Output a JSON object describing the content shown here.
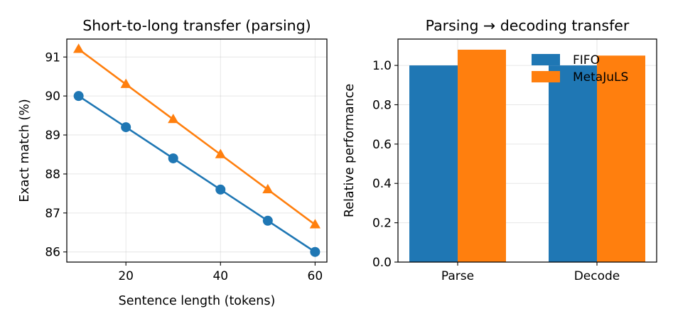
{
  "colors": {
    "fifo": "#1f77b4",
    "metajuls": "#ff7f0e"
  },
  "chart_data": [
    {
      "type": "line",
      "title": "Short-to-long transfer (parsing)",
      "xlabel": "Sentence length (tokens)",
      "ylabel": "Exact match (%)",
      "x": [
        10,
        20,
        30,
        40,
        50,
        60
      ],
      "xlim": [
        7.5,
        62.5
      ],
      "ylim": [
        85.74,
        91.46
      ],
      "xticks": [
        20,
        40,
        60
      ],
      "yticks": [
        86,
        87,
        88,
        89,
        90,
        91
      ],
      "grid": true,
      "series": [
        {
          "values": [
            90.0,
            89.2,
            88.4,
            87.6,
            86.8,
            86.0
          ],
          "marker": "circle",
          "color": "#1f77b4"
        },
        {
          "values": [
            91.2,
            90.3,
            89.4,
            88.5,
            87.6,
            86.7
          ],
          "marker": "triangle",
          "color": "#ff7f0e"
        }
      ]
    },
    {
      "type": "bar",
      "title": "Parsing → decoding transfer",
      "xlabel": "",
      "ylabel": "Relative performance",
      "categories": [
        "Parse",
        "Decode"
      ],
      "ylim": [
        0,
        1.134
      ],
      "yticks": [
        0.0,
        0.2,
        0.4,
        0.6,
        0.8,
        1.0
      ],
      "grid": true,
      "legend": "top-right",
      "series": [
        {
          "name": "FIFO",
          "values": [
            1.0,
            1.0
          ],
          "color": "#1f77b4"
        },
        {
          "name": "MetaJuLS",
          "values": [
            1.08,
            1.05
          ],
          "color": "#ff7f0e"
        }
      ]
    }
  ]
}
